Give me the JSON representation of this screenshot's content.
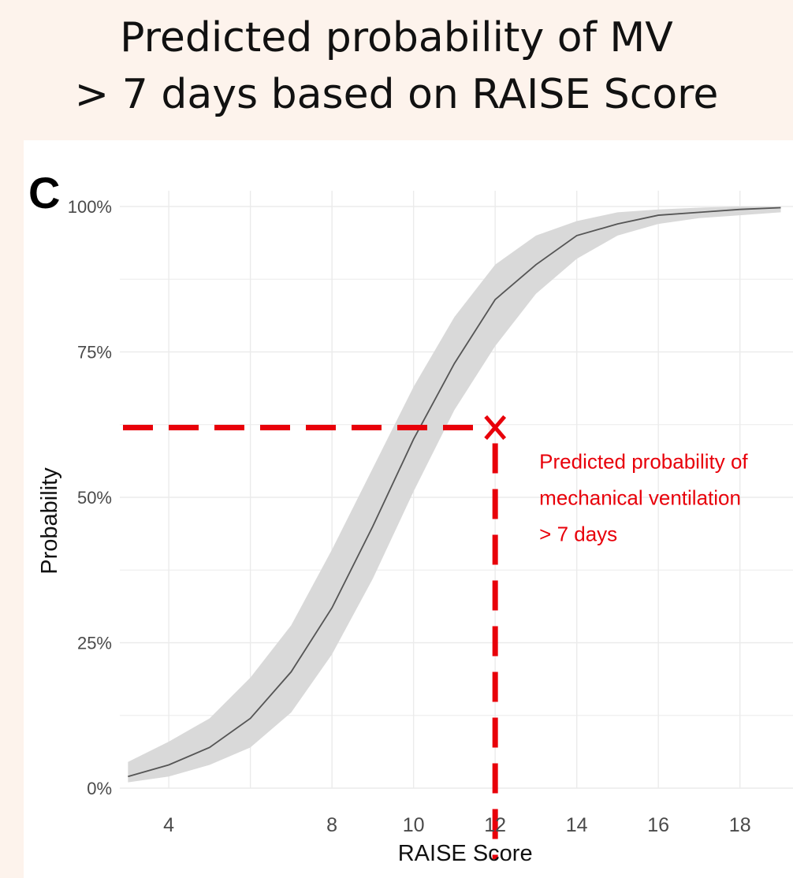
{
  "title": {
    "line1": "Predicted probability of MV",
    "line2": "> 7 days based on RAISE Score"
  },
  "panel_label": "C",
  "chart_data": {
    "type": "line",
    "xlabel": "RAISE Score",
    "ylabel": "Probability",
    "xlim": [
      2.8,
      19.3
    ],
    "ylim": [
      0,
      1
    ],
    "x_ticks": [
      4,
      8,
      10,
      12,
      14,
      16,
      18
    ],
    "x_tick_labels": [
      "4",
      "8",
      "10",
      "12",
      "14",
      "16",
      "18"
    ],
    "y_ticks": [
      0,
      0.25,
      0.5,
      0.75,
      1.0
    ],
    "y_tick_labels": [
      "0%",
      "25%",
      "50%",
      "75%",
      "100%"
    ],
    "grid": true,
    "series": [
      {
        "x": [
          3,
          4,
          5,
          6,
          7,
          8,
          9,
          10,
          11,
          12,
          13,
          14,
          15,
          16,
          17,
          18,
          19
        ],
        "y": [
          0.02,
          0.04,
          0.07,
          0.12,
          0.2,
          0.31,
          0.45,
          0.6,
          0.73,
          0.84,
          0.9,
          0.95,
          0.97,
          0.985,
          0.99,
          0.995,
          0.998
        ],
        "lower": [
          0.01,
          0.02,
          0.04,
          0.07,
          0.13,
          0.23,
          0.36,
          0.51,
          0.65,
          0.76,
          0.85,
          0.91,
          0.95,
          0.97,
          0.98,
          0.985,
          0.99
        ],
        "upper": [
          0.045,
          0.08,
          0.12,
          0.19,
          0.28,
          0.41,
          0.55,
          0.69,
          0.81,
          0.9,
          0.95,
          0.975,
          0.99,
          0.995,
          0.998,
          1.0,
          1.0
        ]
      }
    ],
    "reference": {
      "x": 12,
      "y": 0.62
    },
    "annotation": {
      "lines": [
        "Predicted probability of",
        "mechanical ventilation",
        "> 7 days"
      ]
    },
    "colors": {
      "line": "#555555",
      "band": "#d9d9d9",
      "reference": "#e8000a",
      "grid": "#ebebeb"
    }
  }
}
